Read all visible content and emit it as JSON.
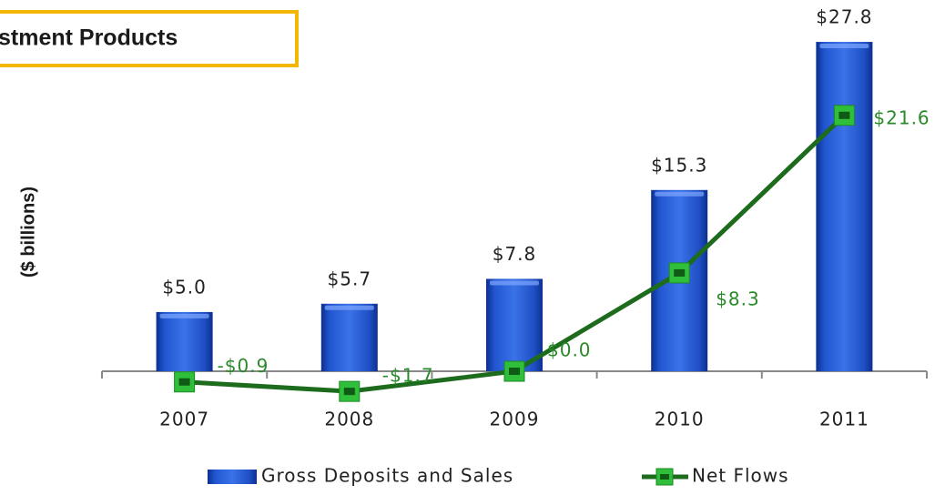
{
  "chart_data": {
    "type": "bar",
    "title": "stment Products",
    "y_label": "($ billions)",
    "categories": [
      "2007",
      "2008",
      "2009",
      "2010",
      "2011"
    ],
    "series": [
      {
        "name": "Gross Deposits and Sales",
        "type": "bar",
        "color": "#1f4fc4",
        "values": [
          5.0,
          5.7,
          7.8,
          15.3,
          27.8
        ],
        "value_labels": [
          "$5.0",
          "$5.7",
          "$7.8",
          "$15.3",
          "$27.8"
        ]
      },
      {
        "name": "Net Flows",
        "type": "line",
        "color": "#1d6b1d",
        "values": [
          -0.9,
          -1.7,
          0.0,
          8.3,
          21.6
        ],
        "value_labels": [
          "-$0.9",
          "-$1.7",
          "$0.0",
          "$8.3",
          "$21.6"
        ]
      }
    ],
    "ylim": [
      -4,
      30
    ],
    "legend": "bottom"
  }
}
